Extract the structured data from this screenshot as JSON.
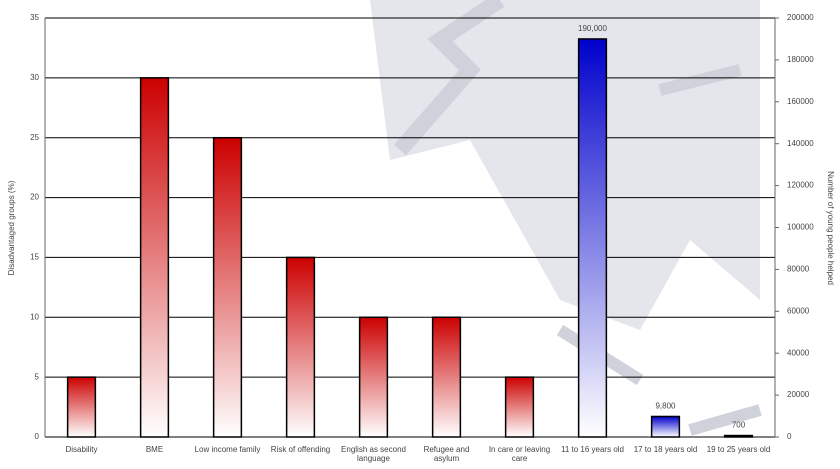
{
  "chart_data": {
    "type": "bar",
    "y_label": "Disadvantaged groups (%)",
    "y2_label": "Number of young people helped",
    "categories": [
      "Disability",
      "BME",
      "Low income family",
      "Risk of offending",
      "English as second language",
      "Refugee and asylum",
      "In care or leaving care",
      "11 to 16 years old",
      "17 to 18 years old",
      "19 to 25 years old"
    ],
    "series": [
      {
        "name": "Disadvantaged groups",
        "color": "#cc0000",
        "axis": "y",
        "values": [
          5,
          30,
          25,
          15,
          10,
          10,
          5,
          null,
          null,
          null
        ]
      },
      {
        "name": "Young people helped",
        "color": "#0000cc",
        "axis": "y2",
        "values": [
          null,
          null,
          null,
          null,
          null,
          null,
          null,
          190000,
          9800,
          700
        ],
        "value_labels": [
          null,
          null,
          null,
          null,
          null,
          null,
          null,
          "190,000",
          "9,800",
          "700"
        ]
      }
    ],
    "ylim": [
      0,
      35
    ],
    "yticks": [
      0,
      5,
      10,
      15,
      20,
      25,
      30,
      35
    ],
    "y2lim": [
      0,
      200000
    ],
    "y2ticks": [
      0,
      20000,
      40000,
      60000,
      80000,
      100000,
      120000,
      140000,
      160000,
      180000,
      200000
    ],
    "grid": true
  }
}
